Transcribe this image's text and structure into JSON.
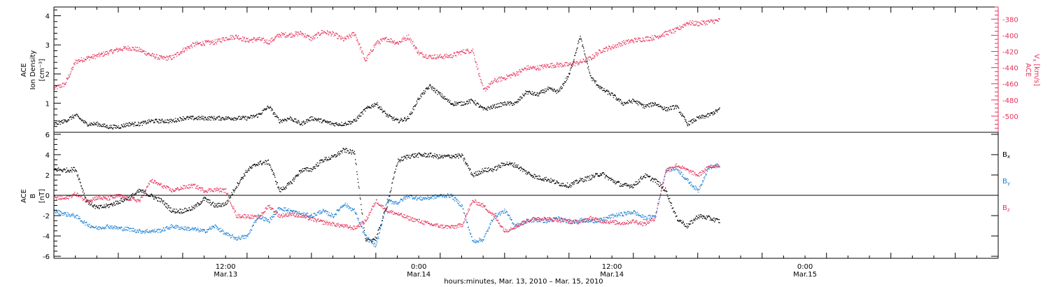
{
  "chart_data": [
    {
      "type": "scatter",
      "panel": "top",
      "title": "",
      "ylabel": [
        "ACE",
        "Ion Density",
        "[cm⁻³]"
      ],
      "ylabel_right": [
        "ACE",
        "V",
        "x",
        "[km/s]"
      ],
      "ylim": [
        0,
        4.3
      ],
      "ylim_right": [
        -520,
        -365
      ],
      "yticks": [
        1,
        2,
        3,
        4
      ],
      "yticks_right": [
        -500,
        -480,
        -460,
        -440,
        -420,
        -400,
        -380
      ],
      "grid": false,
      "colors": {
        "density": "#000000",
        "vx": "#e8325a"
      },
      "series": [
        {
          "name": "Ion Density",
          "axis": "left",
          "color": "#000000",
          "x": [
            0,
            1,
            2,
            3,
            4,
            5,
            6,
            7,
            8,
            9,
            10,
            11,
            12,
            13,
            14,
            15,
            16,
            17,
            18,
            19,
            20,
            21,
            22,
            23,
            24,
            25,
            26,
            27,
            28,
            29,
            30,
            31,
            32,
            33,
            34,
            35,
            36,
            37,
            38,
            39,
            40,
            41,
            42,
            43,
            44,
            45,
            46,
            47,
            48,
            49,
            50,
            51,
            52,
            53,
            54,
            55,
            56,
            57,
            58,
            59,
            60,
            61,
            62
          ],
          "y": [
            0.3,
            0.4,
            0.6,
            0.3,
            0.3,
            0.2,
            0.2,
            0.3,
            0.3,
            0.4,
            0.4,
            0.4,
            0.5,
            0.5,
            0.5,
            0.5,
            0.5,
            0.5,
            0.5,
            0.6,
            0.9,
            0.4,
            0.5,
            0.3,
            0.5,
            0.4,
            0.3,
            0.3,
            0.4,
            0.8,
            1.0,
            0.6,
            0.4,
            0.5,
            1.2,
            1.6,
            1.3,
            1.0,
            1.0,
            1.1,
            0.8,
            0.9,
            1.0,
            1.0,
            1.4,
            1.3,
            1.5,
            1.4,
            2.0,
            3.3,
            1.9,
            1.5,
            1.3,
            1.0,
            1.1,
            0.9,
            1.0,
            0.8,
            0.9,
            0.3,
            0.5,
            0.6,
            0.8
          ]
        },
        {
          "name": "Vx",
          "axis": "right",
          "color": "#e8325a",
          "x": [
            0,
            1,
            2,
            3,
            4,
            5,
            6,
            7,
            8,
            9,
            10,
            11,
            12,
            13,
            14,
            15,
            16,
            17,
            18,
            19,
            20,
            21,
            22,
            23,
            24,
            25,
            26,
            27,
            28,
            29,
            30,
            31,
            32,
            33,
            34,
            35,
            36,
            37,
            38,
            39,
            40,
            41,
            42,
            43,
            44,
            45,
            46,
            47,
            48,
            49,
            50,
            51,
            52,
            53,
            54,
            55,
            56,
            57,
            58,
            59,
            60,
            61,
            62
          ],
          "y": [
            -465,
            -460,
            -432,
            -428,
            -425,
            -421,
            -417,
            -415,
            -418,
            -424,
            -428,
            -427,
            -418,
            -411,
            -409,
            -408,
            -403,
            -401,
            -406,
            -404,
            -408,
            -399,
            -399,
            -397,
            -404,
            -395,
            -398,
            -405,
            -397,
            -431,
            -409,
            -404,
            -409,
            -401,
            -422,
            -426,
            -426,
            -425,
            -420,
            -418,
            -468,
            -456,
            -452,
            -447,
            -440,
            -440,
            -437,
            -436,
            -436,
            -433,
            -428,
            -418,
            -414,
            -409,
            -406,
            -404,
            -402,
            -397,
            -393,
            -384,
            -385,
            -383,
            -381
          ]
        }
      ]
    },
    {
      "type": "scatter",
      "panel": "bottom",
      "title": "",
      "ylabel": [
        "ACE",
        "B",
        "[nT]"
      ],
      "ylim": [
        -6.2,
        6.2
      ],
      "yticks": [
        -6,
        -4,
        -2,
        0,
        2,
        4,
        6
      ],
      "grid": false,
      "zero_line": true,
      "legend_position": "right",
      "series": [
        {
          "name": "B",
          "subscript": "x",
          "color": "#000000",
          "x": [
            0,
            1,
            2,
            3,
            4,
            5,
            6,
            7,
            8,
            9,
            10,
            11,
            12,
            13,
            14,
            15,
            16,
            17,
            18,
            19,
            20,
            21,
            22,
            23,
            24,
            25,
            26,
            27,
            28,
            29,
            30,
            31,
            32,
            33,
            34,
            35,
            36,
            37,
            38,
            39,
            40,
            41,
            42,
            43,
            44,
            45,
            46,
            47,
            48,
            49,
            50,
            51,
            52,
            53,
            54,
            55,
            56,
            57,
            58,
            59,
            60,
            61,
            62
          ],
          "y": [
            2.6,
            2.5,
            2.6,
            -0.5,
            -1.2,
            -1.0,
            -0.6,
            -0.2,
            0.5,
            0.0,
            -0.5,
            -1.5,
            -1.5,
            -1.2,
            -0.3,
            -1.0,
            -0.8,
            1.0,
            2.5,
            3.2,
            3.3,
            0.5,
            1.2,
            2.5,
            2.6,
            3.5,
            3.8,
            4.5,
            4.2,
            -4.5,
            -4.2,
            -1.0,
            3.4,
            3.9,
            4.0,
            4.0,
            3.8,
            3.9,
            3.9,
            2.0,
            2.5,
            2.6,
            3.2,
            3.0,
            2.3,
            1.8,
            1.6,
            1.2,
            1.0,
            1.5,
            1.8,
            2.2,
            1.5,
            1.0,
            1.0,
            2.0,
            1.5,
            0.5,
            -2.2,
            -3.0,
            -2.0,
            -2.2,
            -2.5
          ]
        },
        {
          "name": "B",
          "subscript": "y",
          "color": "#1a7fd6",
          "x": [
            0,
            1,
            2,
            3,
            4,
            5,
            6,
            7,
            8,
            9,
            10,
            11,
            12,
            13,
            14,
            15,
            16,
            17,
            18,
            19,
            20,
            21,
            22,
            23,
            24,
            25,
            26,
            27,
            28,
            29,
            30,
            31,
            32,
            33,
            34,
            35,
            36,
            37,
            38,
            39,
            40,
            41,
            42,
            43,
            44,
            45,
            46,
            47,
            48,
            49,
            50,
            51,
            52,
            53,
            54,
            55,
            56,
            57,
            58,
            59,
            60,
            61,
            62
          ],
          "y": [
            -1.5,
            -1.8,
            -2.0,
            -2.8,
            -3.2,
            -3.0,
            -3.2,
            -3.3,
            -3.5,
            -3.5,
            -3.4,
            -3.0,
            -3.2,
            -3.3,
            -3.5,
            -3.0,
            -3.8,
            -4.2,
            -4.0,
            -2.0,
            -2.5,
            -1.2,
            -1.5,
            -1.8,
            -2.0,
            -1.5,
            -2.0,
            -0.8,
            -1.5,
            -4.0,
            -5.0,
            -0.5,
            -0.7,
            0.0,
            -0.3,
            -0.2,
            0.0,
            0.0,
            -1.0,
            -4.5,
            -4.3,
            -2.0,
            -1.5,
            -3.0,
            -2.5,
            -2.4,
            -2.5,
            -2.2,
            -2.6,
            -2.4,
            -2.5,
            -2.4,
            -2.0,
            -1.8,
            -1.6,
            -2.2,
            -2.0,
            2.5,
            2.7,
            1.5,
            0.5,
            2.8,
            3.0
          ]
        },
        {
          "name": "B",
          "subscript": "z",
          "color": "#e8325a",
          "x": [
            0,
            1,
            2,
            3,
            4,
            5,
            6,
            7,
            8,
            9,
            10,
            11,
            12,
            13,
            14,
            15,
            16,
            17,
            18,
            19,
            20,
            21,
            22,
            23,
            24,
            25,
            26,
            27,
            28,
            29,
            30,
            31,
            32,
            33,
            34,
            35,
            36,
            37,
            38,
            39,
            40,
            41,
            42,
            43,
            44,
            45,
            46,
            47,
            48,
            49,
            50,
            51,
            52,
            53,
            54,
            55,
            56,
            57,
            58,
            59,
            60,
            61,
            62
          ],
          "y": [
            -0.2,
            -0.3,
            0.2,
            -0.5,
            -0.2,
            -0.3,
            0.0,
            -0.3,
            -0.5,
            1.5,
            1.0,
            0.5,
            0.8,
            1.0,
            0.5,
            0.6,
            0.5,
            -2.0,
            -2.0,
            -2.2,
            -1.0,
            -2.0,
            -1.8,
            -2.0,
            -2.3,
            -2.6,
            -2.8,
            -3.0,
            -3.2,
            -2.5,
            -0.5,
            -1.5,
            -1.8,
            -2.2,
            -2.5,
            -2.8,
            -3.0,
            -3.1,
            -2.9,
            -0.5,
            -1.0,
            -2.0,
            -3.5,
            -3.0,
            -2.5,
            -2.2,
            -2.3,
            -2.4,
            -2.5,
            -2.6,
            -2.2,
            -2.5,
            -2.6,
            -2.7,
            -2.5,
            -2.8,
            -2.2,
            2.5,
            3.0,
            2.5,
            2.0,
            2.8,
            3.0
          ]
        }
      ]
    }
  ],
  "x_axis": {
    "xlabel": "hours:minutes, Mar. 13, 2010 – Mar. 15, 2010",
    "xlim": [
      0,
      88
    ],
    "tick_times": [
      "12:00",
      "0:00",
      "12:00",
      "0:00"
    ],
    "tick_dates": [
      "Mar.13",
      "Mar.14",
      "Mar.14",
      "Mar.15"
    ],
    "tick_x": [
      16,
      34,
      52,
      70
    ]
  }
}
